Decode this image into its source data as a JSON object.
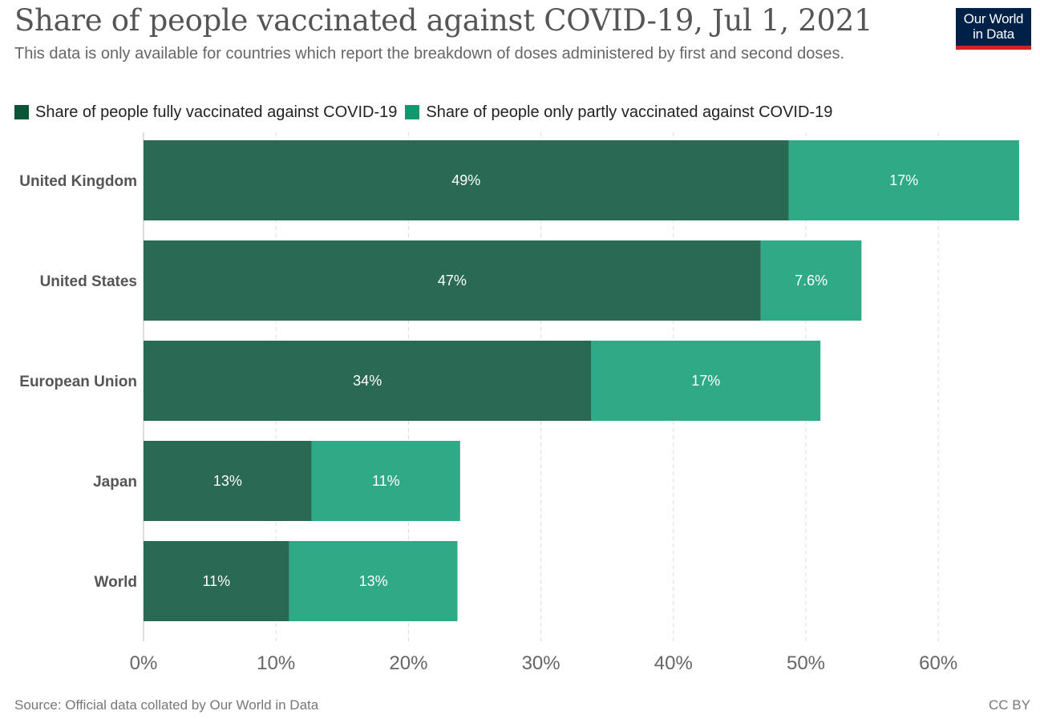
{
  "header": {
    "title": "Share of people vaccinated against COVID-19, Jul 1, 2021",
    "subtitle": "This data is only available for countries which report the breakdown of doses administered by first and second doses.",
    "logo_line1": "Our World",
    "logo_line2": "in Data"
  },
  "footer": {
    "source": "Source: Official data collated by Our World in Data",
    "license": "CC BY"
  },
  "colors": {
    "fully": "#2a6954",
    "partly": "#30a986",
    "legend_fully": "#0a5536",
    "legend_partly": "#10996e"
  },
  "chart_data": {
    "type": "bar",
    "orientation": "horizontal",
    "stacked": true,
    "categories": [
      "United Kingdom",
      "United States",
      "European Union",
      "Japan",
      "World"
    ],
    "series": [
      {
        "name": "Share of people fully vaccinated against COVID-19",
        "values": [
          48.7,
          46.6,
          33.8,
          12.7,
          11.0
        ],
        "labels": [
          "49%",
          "47%",
          "34%",
          "13%",
          "11%"
        ]
      },
      {
        "name": "Share of people only partly vaccinated against COVID-19",
        "values": [
          17.4,
          7.6,
          17.3,
          11.2,
          12.7
        ],
        "labels": [
          "17%",
          "7.6%",
          "17%",
          "11%",
          "13%"
        ]
      }
    ],
    "xlim": [
      0,
      66
    ],
    "xticks": [
      0,
      10,
      20,
      30,
      40,
      50,
      60
    ],
    "xtick_labels": [
      "0%",
      "10%",
      "20%",
      "30%",
      "40%",
      "50%",
      "60%"
    ],
    "grid": "vertical dashed",
    "legend_position": "top"
  }
}
